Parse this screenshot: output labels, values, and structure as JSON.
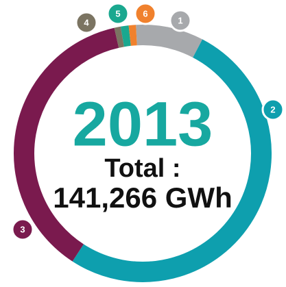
{
  "chart_data": {
    "type": "donut",
    "title": "2013",
    "subtitle": "Total :",
    "total_label": "141,266 GWh",
    "categories": [
      "1",
      "2",
      "3",
      "4",
      "5",
      "6"
    ],
    "values": [
      8.5,
      51.5,
      37.3,
      0.8,
      1.0,
      0.9
    ],
    "colors": [
      "#a7a9ac",
      "#0e9fae",
      "#7a1a4e",
      "#7b7462",
      "#1aa88f",
      "#f0812d"
    ]
  }
}
